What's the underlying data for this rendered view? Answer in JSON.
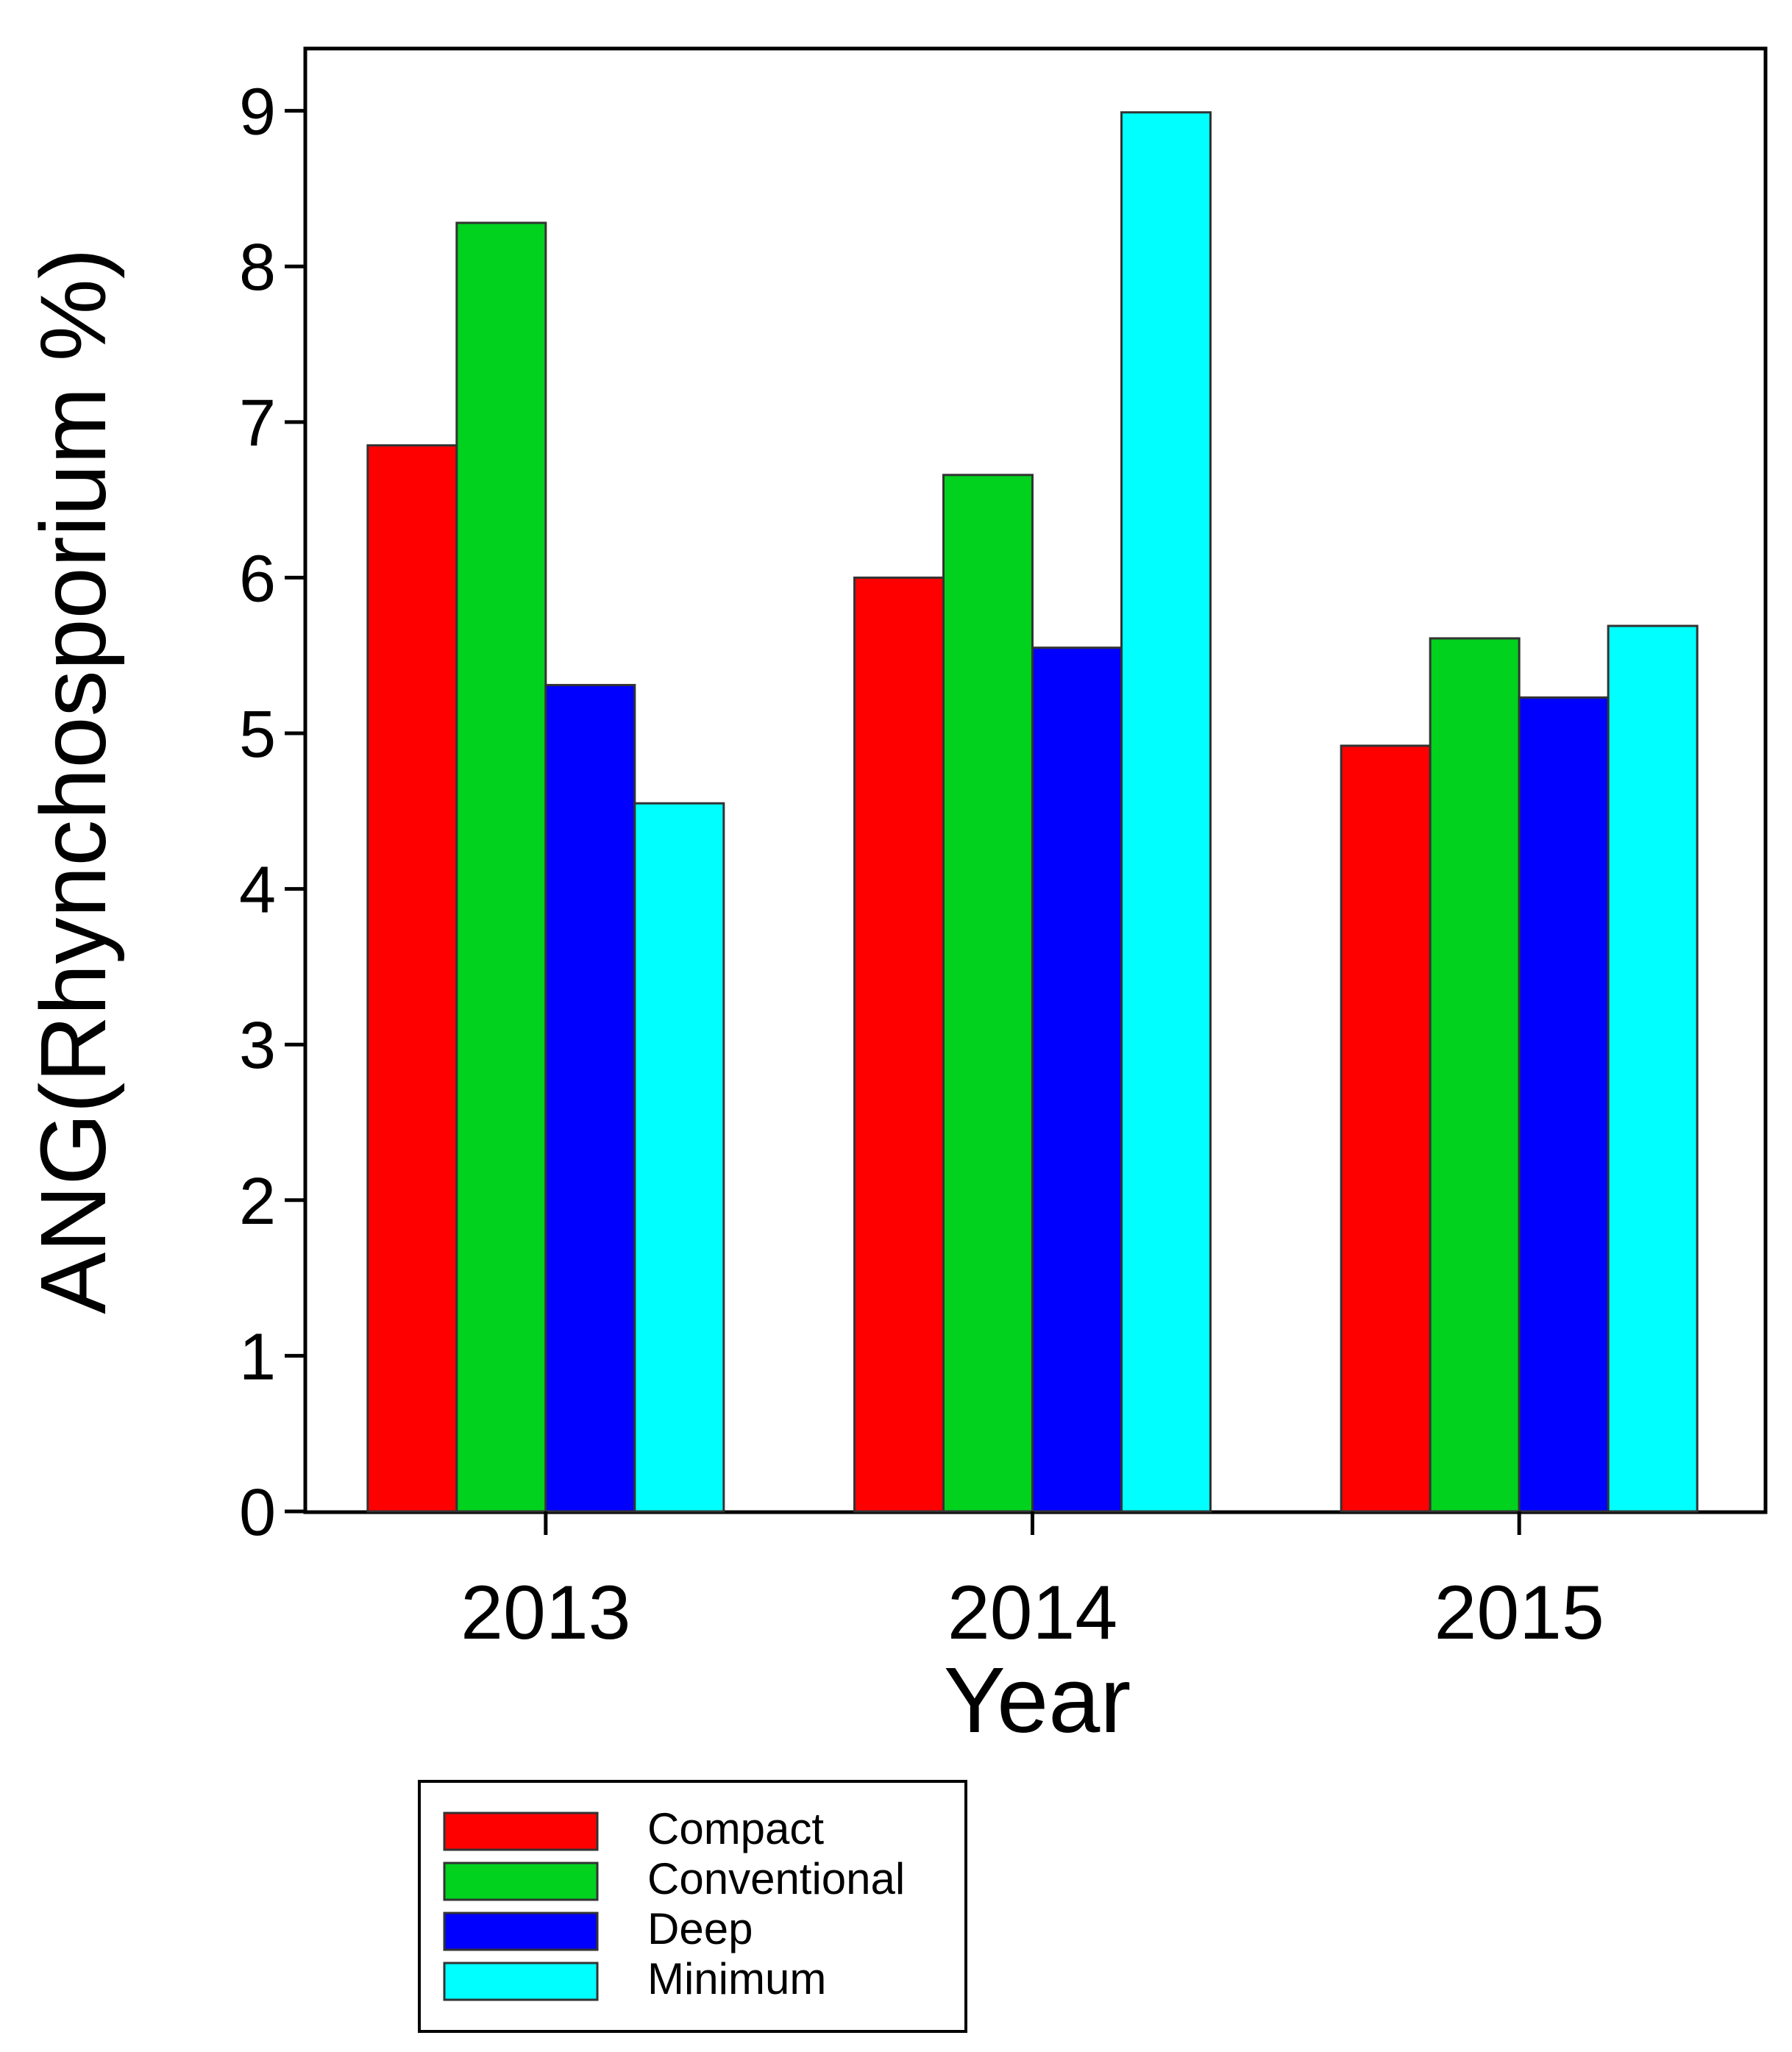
{
  "chart_data": {
    "type": "bar",
    "categories": [
      "2013",
      "2014",
      "2015"
    ],
    "series": [
      {
        "name": "Compact",
        "color": "#ff0000",
        "values": [
          6.85,
          6.0,
          4.92
        ]
      },
      {
        "name": "Conventional",
        "color": "#00d21e",
        "values": [
          8.28,
          6.66,
          5.61
        ]
      },
      {
        "name": "Deep",
        "color": "#0000ff",
        "values": [
          5.31,
          5.55,
          5.23
        ]
      },
      {
        "name": "Minimum",
        "color": "#00ffff",
        "values": [
          4.55,
          8.99,
          5.69
        ]
      }
    ],
    "title": "",
    "xlabel": "Year",
    "ylabel": "ANG(Rhynchosporium %)",
    "ylim": [
      0,
      9.4
    ],
    "yticks": [
      0,
      1,
      2,
      3,
      4,
      5,
      6,
      7,
      8,
      9
    ],
    "grid": false,
    "legend_position": "bottom-left"
  }
}
